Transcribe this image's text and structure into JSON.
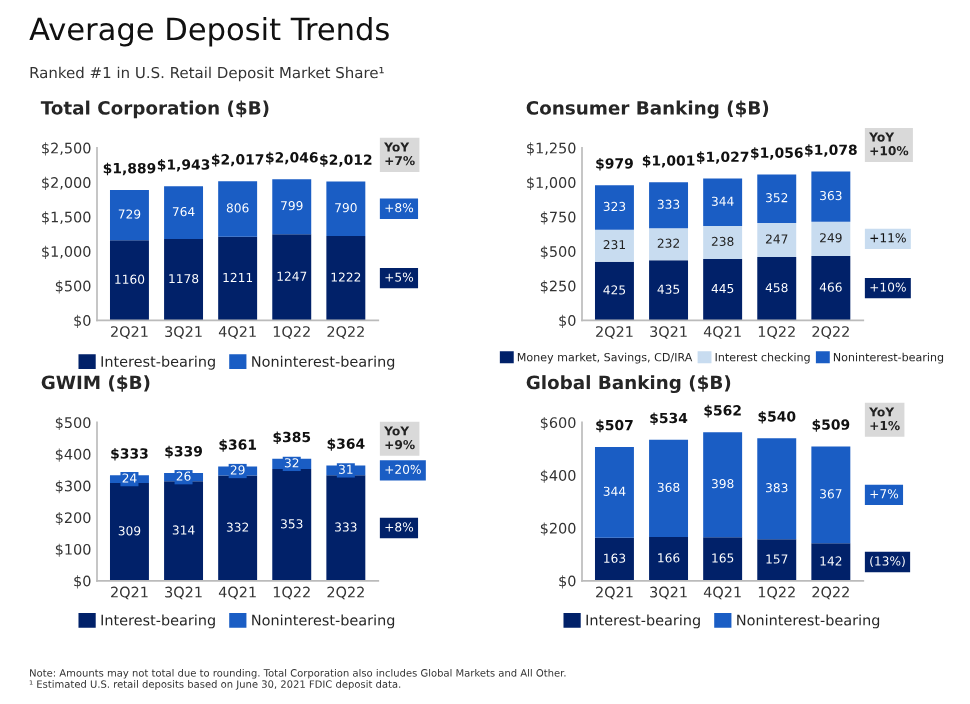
{
  "chart_data": [
    {
      "type": "bar",
      "stacked": true,
      "title": "Total Corporation ($B)",
      "categories": [
        "2Q21",
        "3Q21",
        "4Q21",
        "1Q22",
        "2Q22"
      ],
      "series": [
        {
          "name": "Interest-bearing",
          "color": "#012169",
          "values": [
            1160,
            1178,
            1211,
            1247,
            1222
          ]
        },
        {
          "name": "Noninterest-bearing",
          "color": "#1a5dc4",
          "values": [
            729,
            764,
            806,
            799,
            790
          ]
        }
      ],
      "data_labels": true,
      "totals": [
        "$1,889",
        "$1,943",
        "$2,017",
        "$2,046",
        "$2,012"
      ],
      "ylim": [
        0,
        2500
      ],
      "yticks": [
        {
          "value": 0,
          "label": "$0"
        },
        {
          "value": 500,
          "label": "$500"
        },
        {
          "value": 1000,
          "label": "$1,000"
        },
        {
          "value": 1500,
          "label": "$1,500"
        },
        {
          "value": 2000,
          "label": "$2,000"
        },
        {
          "value": 2500,
          "label": "$2,500"
        }
      ],
      "legend": "bottom",
      "grid": false,
      "annotations": [
        "YoY\n+7%",
        "+8%",
        "+5%"
      ]
    },
    {
      "type": "bar",
      "stacked": true,
      "title": "Consumer Banking ($B)",
      "categories": [
        "2Q21",
        "3Q21",
        "4Q21",
        "1Q22",
        "2Q22"
      ],
      "series": [
        {
          "name": "Money market, Savings, CD/IRA",
          "color": "#012169",
          "values": [
            425,
            435,
            445,
            458,
            466
          ]
        },
        {
          "name": "Interest checking",
          "color": "#c8dcf0",
          "values": [
            231,
            232,
            238,
            247,
            249
          ]
        },
        {
          "name": "Noninterest-bearing",
          "color": "#1a5dc4",
          "values": [
            323,
            333,
            344,
            352,
            363
          ]
        }
      ],
      "data_labels": true,
      "totals": [
        "$979",
        "$1,001",
        "$1,027",
        "$1,056",
        "$1,078"
      ],
      "ylim": [
        0,
        1250
      ],
      "yticks": [
        {
          "value": 0,
          "label": "$0"
        },
        {
          "value": 250,
          "label": "$250"
        },
        {
          "value": 500,
          "label": "$500"
        },
        {
          "value": 750,
          "label": "$750"
        },
        {
          "value": 1000,
          "label": "$1,000"
        },
        {
          "value": 1250,
          "label": "$1,250"
        }
      ],
      "legend": "bottom",
      "grid": false,
      "annotations": [
        "YoY\n+10%",
        "+11%",
        "+10%"
      ]
    },
    {
      "type": "bar",
      "stacked": true,
      "title": "GWIM ($B)",
      "categories": [
        "2Q21",
        "3Q21",
        "4Q21",
        "1Q22",
        "2Q22"
      ],
      "series": [
        {
          "name": "Interest-bearing",
          "color": "#012169",
          "values": [
            309,
            314,
            332,
            353,
            333
          ]
        },
        {
          "name": "Noninterest-bearing",
          "color": "#1a5dc4",
          "values": [
            24,
            26,
            29,
            32,
            31
          ]
        }
      ],
      "data_labels": true,
      "totals": [
        "$333",
        "$339",
        "$361",
        "$385",
        "$364"
      ],
      "ylim": [
        0,
        500
      ],
      "yticks": [
        {
          "value": 0,
          "label": "$0"
        },
        {
          "value": 100,
          "label": "$100"
        },
        {
          "value": 200,
          "label": "$200"
        },
        {
          "value": 300,
          "label": "$300"
        },
        {
          "value": 400,
          "label": "$400"
        },
        {
          "value": 500,
          "label": "$500"
        }
      ],
      "legend": "bottom",
      "grid": false,
      "annotations": [
        "YoY\n+9%",
        "+20%",
        "+8%"
      ]
    },
    {
      "type": "bar",
      "stacked": true,
      "title": "Global Banking ($B)",
      "categories": [
        "2Q21",
        "3Q21",
        "4Q21",
        "1Q22",
        "2Q22"
      ],
      "series": [
        {
          "name": "Interest-bearing",
          "color": "#012169",
          "values": [
            163,
            166,
            165,
            157,
            142
          ]
        },
        {
          "name": "Noninterest-bearing",
          "color": "#1a5dc4",
          "values": [
            344,
            368,
            398,
            383,
            367
          ]
        }
      ],
      "data_labels": true,
      "totals": [
        "$507",
        "$534",
        "$562",
        "$540",
        "$509"
      ],
      "ylim": [
        0,
        600
      ],
      "yticks": [
        {
          "value": 0,
          "label": "$0"
        },
        {
          "value": 200,
          "label": "$200"
        },
        {
          "value": 400,
          "label": "$400"
        },
        {
          "value": 600,
          "label": "$600"
        }
      ],
      "legend": "bottom",
      "grid": false,
      "annotations": [
        "YoY\n+1%",
        "+7%",
        "(13%)"
      ]
    },
    {
      "type": "other",
      "title": "Average Deposit Trends",
      "subtitle": "Ranked #1 in U.S. Retail Deposit Market Share¹",
      "annotations": [
        "Note: Amounts may not total due to rounding. Total Corporation also includes Global Markets and All Other.\n¹ Estimated U.S. retail deposits based on June 30, 2021 FDIC deposit data."
      ]
    }
  ]
}
